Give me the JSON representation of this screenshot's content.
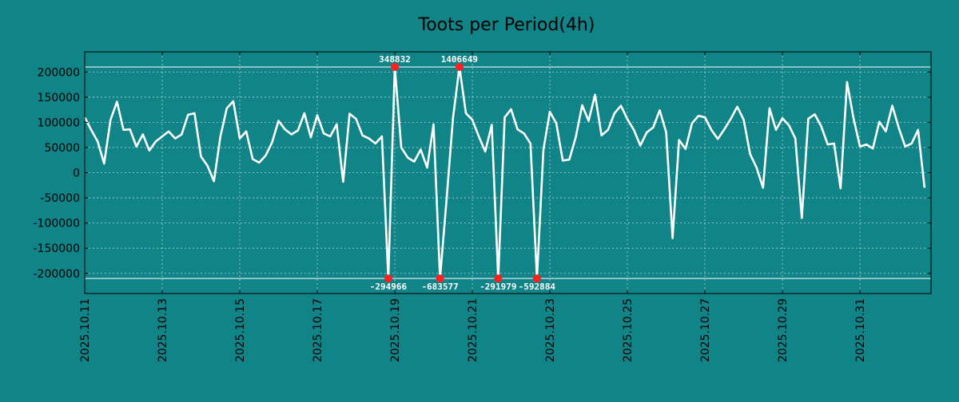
{
  "chart_data": {
    "type": "line",
    "title": "Toots per Period(4h)",
    "xlabel": "",
    "ylabel": "",
    "ylim": [
      -240000,
      240000
    ],
    "xlim": [
      0,
      131
    ],
    "yticks": [
      200000,
      150000,
      100000,
      50000,
      0,
      -50000,
      -100000,
      -150000,
      -200000
    ],
    "ytick_labels": [
      "200000",
      "150000",
      "100000",
      "50000",
      "0",
      "-50000",
      "-100000",
      "-150000",
      "-200000"
    ],
    "xtick_positions": [
      0,
      12,
      24,
      36,
      48,
      60,
      72,
      84,
      96,
      108,
      120
    ],
    "xtick_labels": [
      "2025.10.11",
      "2025.10.13",
      "2025.10.15",
      "2025.10.17",
      "2025.10.19",
      "2025.10.21",
      "2025.10.23",
      "2025.10.25",
      "2025.10.27",
      "2025.10.29",
      "2025.10.31"
    ],
    "hlines": [
      210000,
      -210000
    ],
    "grid": true,
    "line_color": "#ffffff",
    "marker_color": "#ff2020",
    "series": [
      {
        "name": "toots",
        "values": [
          110000,
          85000,
          62000,
          18000,
          105000,
          141000,
          85000,
          86000,
          52000,
          76000,
          44000,
          62000,
          72000,
          82000,
          68000,
          76000,
          115000,
          118000,
          32000,
          14000,
          -17000,
          72000,
          128000,
          142000,
          68000,
          82000,
          27000,
          20000,
          34000,
          60000,
          103000,
          86000,
          76000,
          84000,
          118000,
          70000,
          114000,
          78000,
          72000,
          96000,
          -18000,
          117000,
          107000,
          74000,
          68000,
          58000,
          72000,
          -210000,
          210000,
          50000,
          30000,
          22000,
          46000,
          10000,
          96000,
          -210000,
          -55000,
          108000,
          210000,
          118000,
          105000,
          72000,
          42000,
          95000,
          -210000,
          110000,
          126000,
          86000,
          78000,
          58000,
          -210000,
          46000,
          121000,
          98000,
          24000,
          26000,
          70000,
          134000,
          103000,
          155000,
          74000,
          85000,
          118000,
          133000,
          106000,
          85000,
          54000,
          80000,
          90000,
          124000,
          80000,
          -130000,
          65000,
          47000,
          98000,
          113000,
          110000,
          85000,
          67000,
          86000,
          107000,
          131000,
          105000,
          37000,
          10000,
          -30000,
          128000,
          85000,
          108000,
          94000,
          68000,
          -90000,
          107000,
          116000,
          92000,
          56000,
          58000,
          -31000,
          180000,
          108000,
          52000,
          56000,
          48000,
          101000,
          82000,
          133000,
          89000,
          52000,
          58000,
          85000,
          -30000
        ]
      }
    ],
    "annotations": [
      {
        "x": 48,
        "y": 210000,
        "label": "348832",
        "position": "above"
      },
      {
        "x": 58,
        "y": 210000,
        "label": "1406649",
        "position": "above"
      },
      {
        "x": 47,
        "y": -210000,
        "label": "-294966",
        "position": "below"
      },
      {
        "x": 55,
        "y": -210000,
        "label": "-683577",
        "position": "below"
      },
      {
        "x": 64,
        "y": -210000,
        "label": "-291979",
        "position": "below"
      },
      {
        "x": 70,
        "y": -210000,
        "label": "-592884",
        "position": "below"
      }
    ]
  }
}
